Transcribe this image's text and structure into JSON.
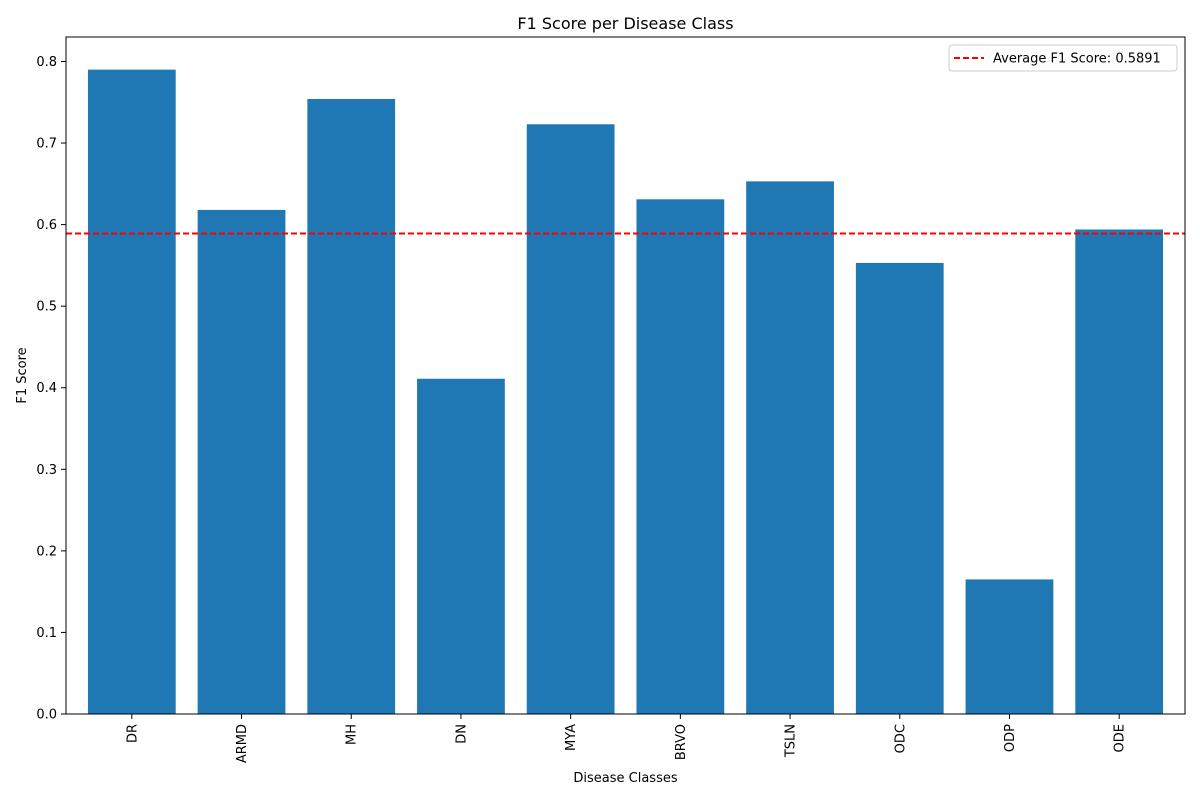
{
  "chart_data": {
    "type": "bar",
    "title": "F1 Score per Disease Class",
    "xlabel": "Disease Classes",
    "ylabel": "F1 Score",
    "categories": [
      "DR",
      "ARMD",
      "MH",
      "DN",
      "MYA",
      "BRVO",
      "TSLN",
      "ODC",
      "ODP",
      "ODE"
    ],
    "values": [
      0.79,
      0.618,
      0.754,
      0.411,
      0.723,
      0.631,
      0.653,
      0.553,
      0.165,
      0.594
    ],
    "ylim": [
      0,
      0.83
    ],
    "yticks": [
      "0.0",
      "0.1",
      "0.2",
      "0.3",
      "0.4",
      "0.5",
      "0.6",
      "0.7",
      "0.8"
    ],
    "bar_color": "#1f77b4",
    "grid": false,
    "reference_line": {
      "value": 0.5891,
      "style": "dashed",
      "color": "#ff0000",
      "label": "Average F1 Score: 0.5891"
    },
    "legend_position": "top-right",
    "x_tick_rotation": "vertical"
  }
}
